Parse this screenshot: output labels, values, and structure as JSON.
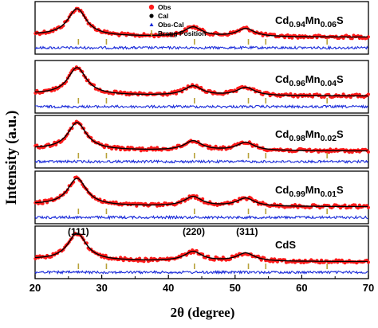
{
  "chart_data": {
    "type": "line",
    "xlabel": "2θ (degree)",
    "ylabel": "Intensity (a.u.)",
    "xlim": [
      20,
      70
    ],
    "xticks": [
      "20",
      "30",
      "40",
      "50",
      "60",
      "70"
    ],
    "legend": {
      "placement": "top-left of top panel",
      "entries": [
        "Obs",
        "Cal",
        "Obs-Cal",
        "Bragg Position"
      ]
    },
    "colors": {
      "obs": "#ff1a1a",
      "cal": "#000000",
      "diff": "#1a2bd9",
      "bragg": "#b8a23a"
    },
    "peak_labels": [
      {
        "text": "(111)",
        "x": 26.5
      },
      {
        "text": "(220)",
        "x": 43.8
      },
      {
        "text": "(311)",
        "x": 51.8
      }
    ],
    "bragg_positions": [
      26.5,
      30.7,
      43.9,
      52.0,
      54.6,
      63.8
    ],
    "panels": [
      {
        "base": "Cd",
        "sub1": "0.94",
        "mid": "Mn",
        "sub2": "0.06",
        "tail": "S"
      },
      {
        "base": "Cd",
        "sub1": "0.96",
        "mid": "Mn",
        "sub2": "0.04",
        "tail": "S"
      },
      {
        "base": "Cd",
        "sub1": "0.98",
        "mid": "Mn",
        "sub2": "0.02",
        "tail": "S"
      },
      {
        "base": "Cd",
        "sub1": "0.99",
        "mid": "Mn",
        "sub2": "0.01",
        "tail": "S"
      },
      {
        "base": "CdS",
        "sub1": "",
        "mid": "",
        "sub2": "",
        "tail": ""
      }
    ],
    "peaks": [
      {
        "center": 26.3,
        "height": 1.0,
        "width": 1.7
      },
      {
        "center": 43.7,
        "height": 0.35,
        "width": 1.6
      },
      {
        "center": 51.6,
        "height": 0.3,
        "width": 1.6
      }
    ]
  }
}
